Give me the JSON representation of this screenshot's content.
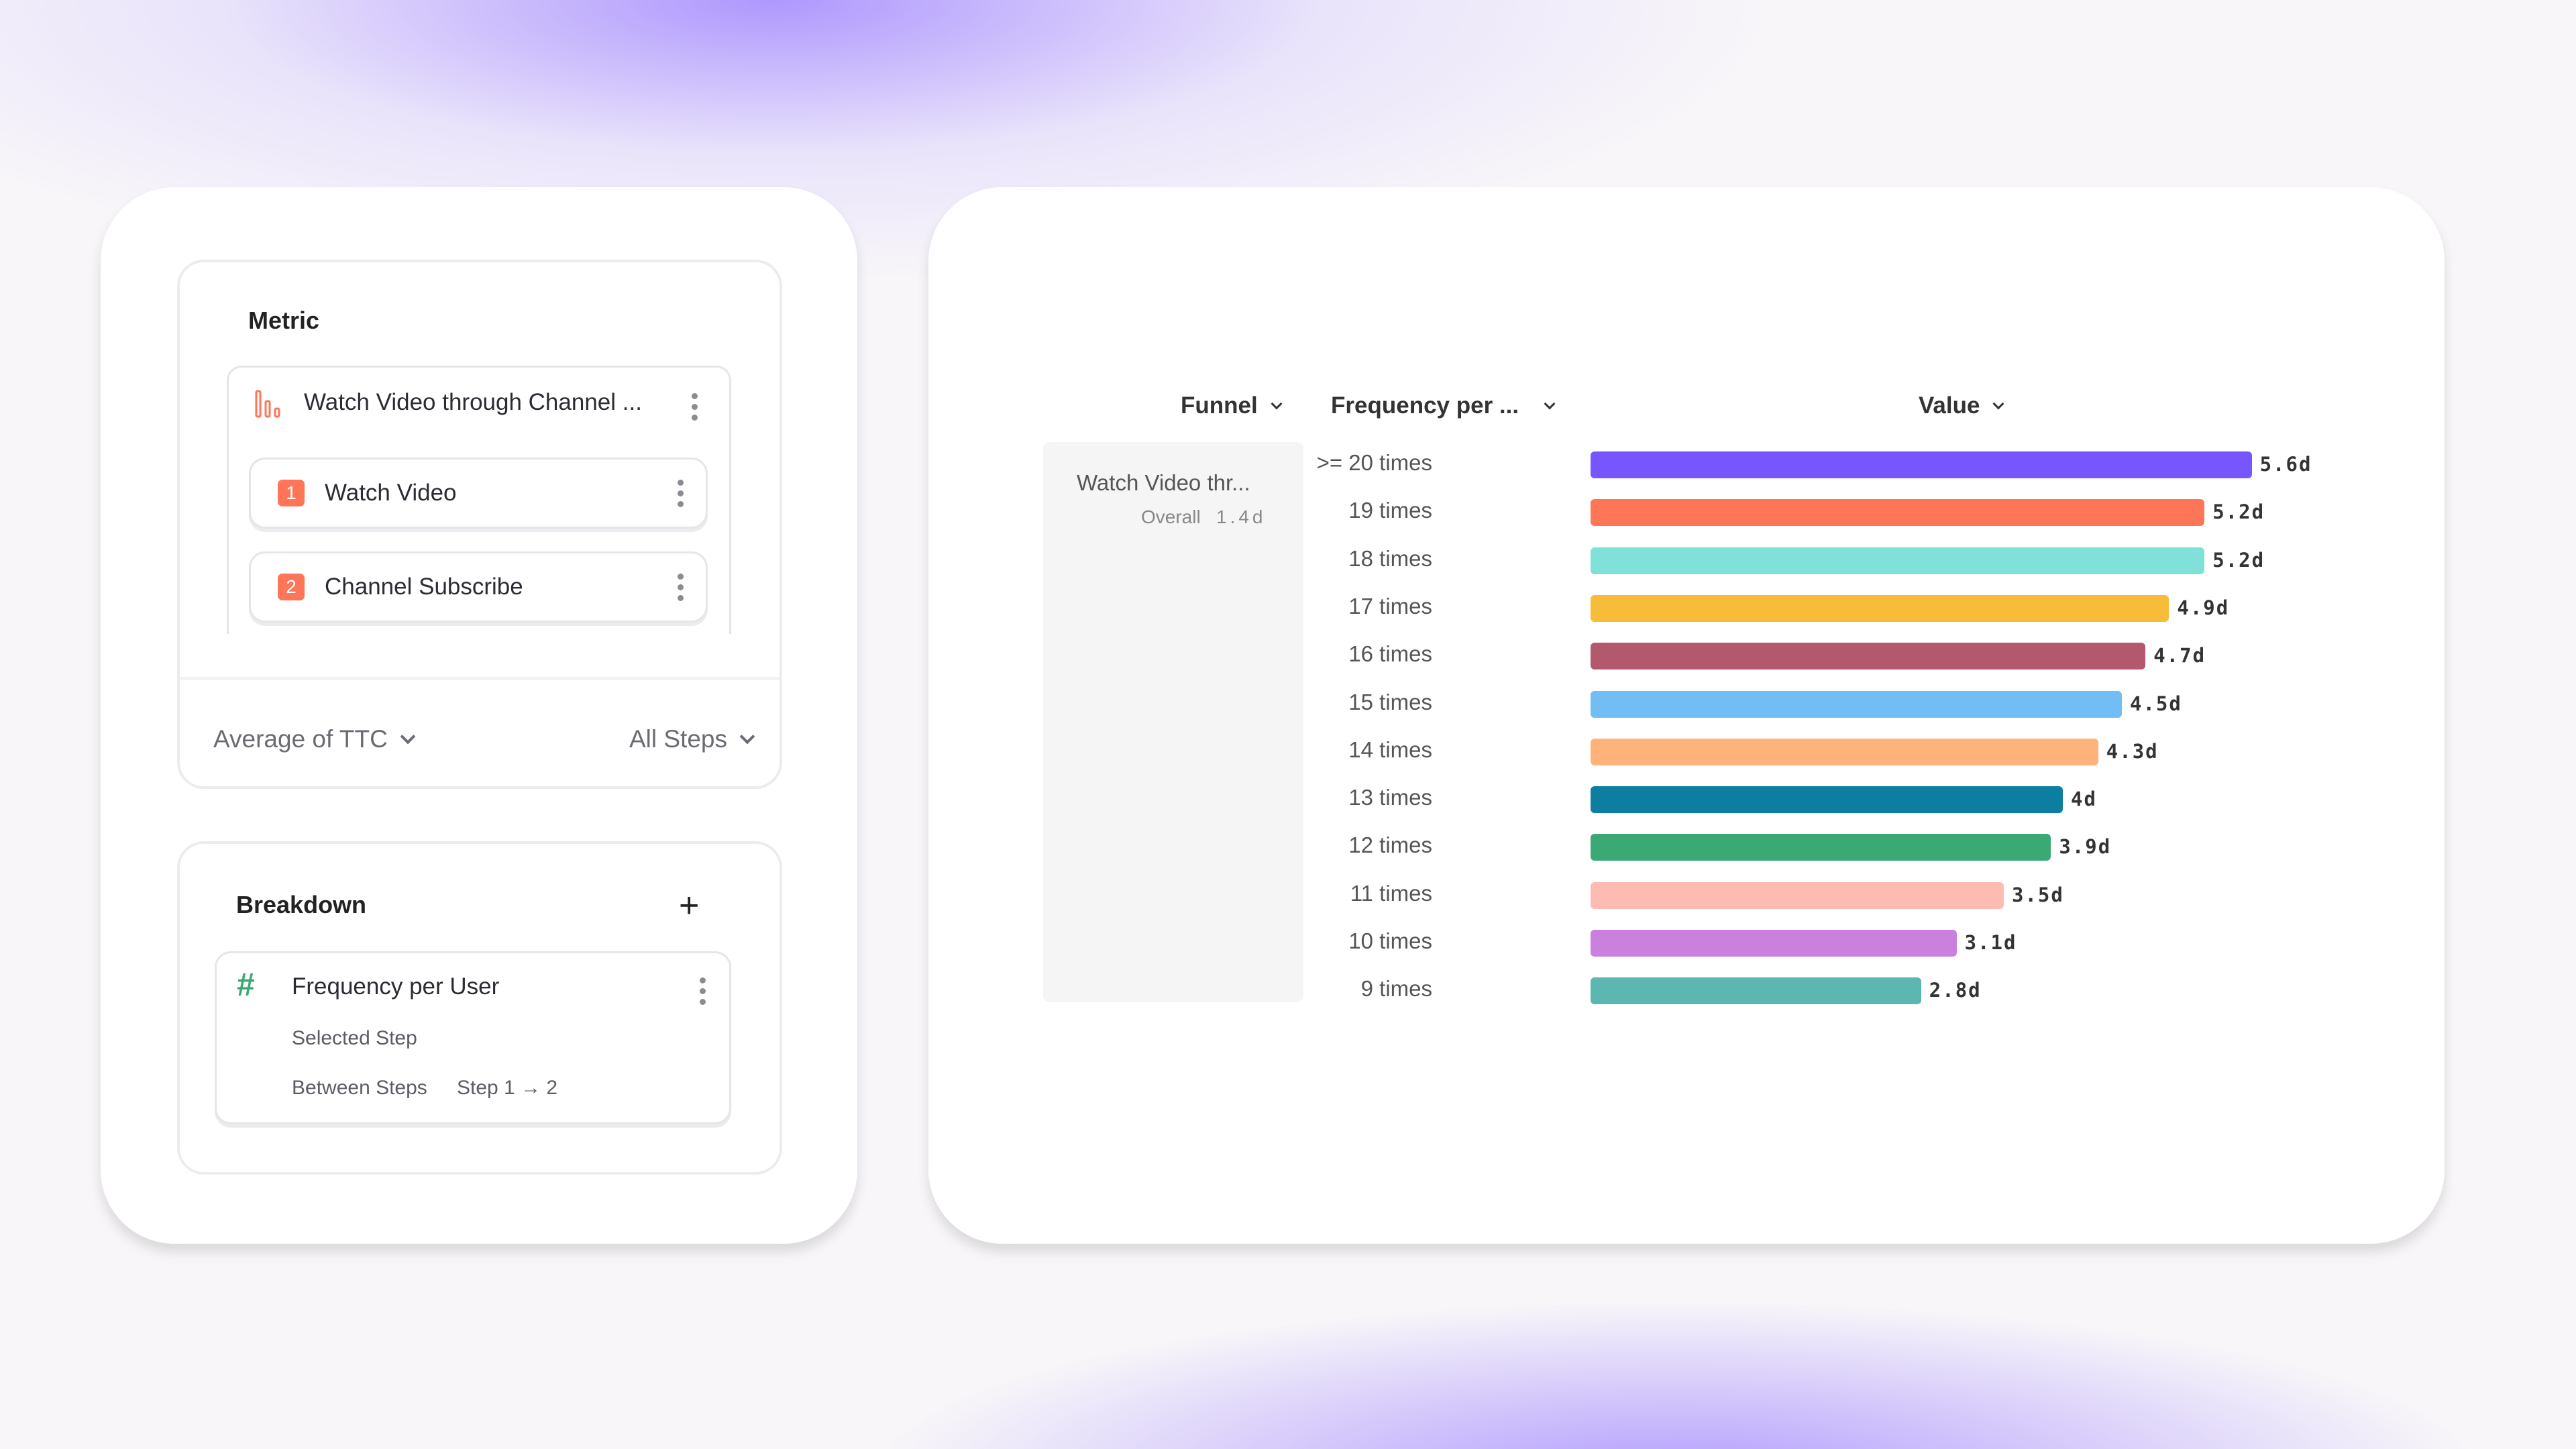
{
  "metric": {
    "title": "Metric",
    "funnel_name": "Watch Video through Channel ...",
    "steps": [
      {
        "n": "1",
        "label": "Watch Video"
      },
      {
        "n": "2",
        "label": "Channel Subscribe"
      }
    ],
    "aggregation": "Average of TTC",
    "step_scope": "All Steps",
    "accent": "#FE7557"
  },
  "breakdown": {
    "title": "Breakdown",
    "item": "Frequency per User",
    "selected": "Selected Step",
    "between_label": "Between Steps",
    "between_value": "Step 1 → 2",
    "icon_color": "#3BA974"
  },
  "table": {
    "headers": {
      "funnel": "Funnel",
      "frequency": "Frequency per ...",
      "value": "Value"
    },
    "funnel_cell": "Watch Video thr...",
    "overall_label": "Overall",
    "overall_value": "1.4d"
  },
  "chart_data": {
    "type": "bar",
    "orientation": "horizontal",
    "unit": "days",
    "categories": [
      ">= 20 times",
      "19 times",
      "18 times",
      "17 times",
      "16 times",
      "15 times",
      "14 times",
      "13 times",
      "12 times",
      "11 times",
      "10 times",
      "9 times"
    ],
    "values": [
      5.6,
      5.2,
      5.2,
      4.9,
      4.7,
      4.5,
      4.3,
      4.0,
      3.9,
      3.5,
      3.1,
      2.8
    ],
    "labels": [
      "5.6d",
      "5.2d",
      "5.2d",
      "4.9d",
      "4.7d",
      "4.5d",
      "4.3d",
      "4d",
      "3.9d",
      "3.5d",
      "3.1d",
      "2.8d"
    ],
    "colors": [
      "#7856FF",
      "#FF7557",
      "#80E1D9",
      "#F8BC3B",
      "#B2596E",
      "#72BEF4",
      "#FFB27A",
      "#0D7EA0",
      "#3BA974",
      "#FEBBB2",
      "#CA80DC",
      "#5BB7AF"
    ]
  }
}
